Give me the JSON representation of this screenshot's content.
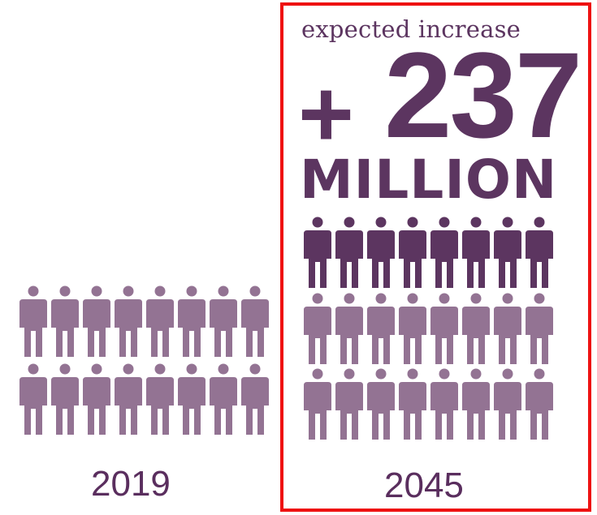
{
  "colors": {
    "light_person": "#937393",
    "dark_person": "#5c3560",
    "highlight_border": "#ee1111",
    "text": "#5a2e5e"
  },
  "icon": "person-icon",
  "baseline": {
    "year": "2019",
    "rows": 2,
    "per_row": 8
  },
  "projection": {
    "year": "2045",
    "subtitle": "expected increase",
    "plus_sign": "+",
    "increase_value": "237",
    "increase_unit": "MILLION",
    "rows": 3,
    "per_row": 8,
    "highlighted_rows": 1
  }
}
